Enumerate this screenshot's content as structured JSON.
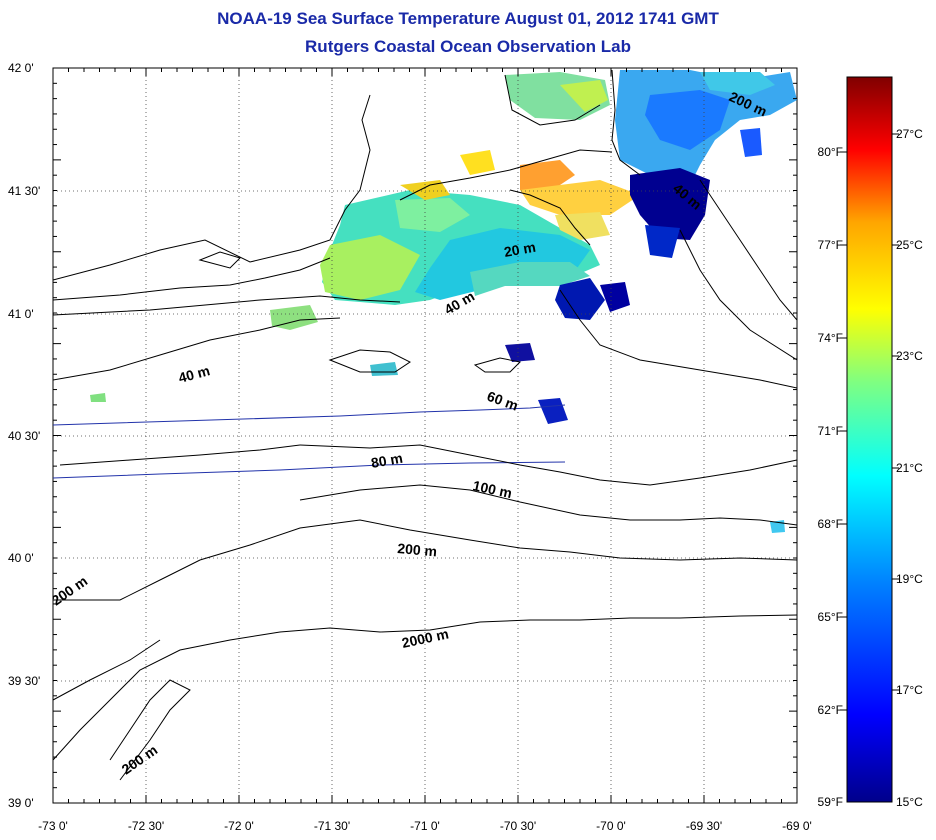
{
  "title": {
    "line1": "NOAA-19 Sea Surface Temperature August 01, 2012 1741 GMT",
    "line2": "Rutgers Coastal Ocean Observation Lab"
  },
  "map": {
    "lat_labels": [
      "42 0'",
      "41 30'",
      "41 0'",
      "40 30'",
      "40 0'",
      "39 30'",
      "39 0'"
    ],
    "lon_labels": [
      "-73 0'",
      "-72 30'",
      "-72 0'",
      "-71 30'",
      "-71 0'",
      "-70 30'",
      "-70 0'",
      "-69 30'",
      "-69 0'"
    ],
    "contour_labels": [
      "20 m",
      "40 m",
      "40 m",
      "40 m",
      "60 m",
      "80 m",
      "100 m",
      "200 m",
      "200 m",
      "2000 m",
      "200 m",
      "200 m"
    ],
    "grid": "dotted"
  },
  "colorbar": {
    "f_labels": [
      "80°F",
      "77°F",
      "74°F",
      "71°F",
      "68°F",
      "65°F",
      "62°F",
      "59°F"
    ],
    "c_labels": [
      "27°C",
      "25°C",
      "23°C",
      "21°C",
      "19°C",
      "17°C",
      "15°C"
    ],
    "colors": [
      "#800000",
      "#ff0000",
      "#ffa500",
      "#ffff00",
      "#80ff80",
      "#00ffff",
      "#0080ff",
      "#0000ff",
      "#00008b"
    ]
  }
}
